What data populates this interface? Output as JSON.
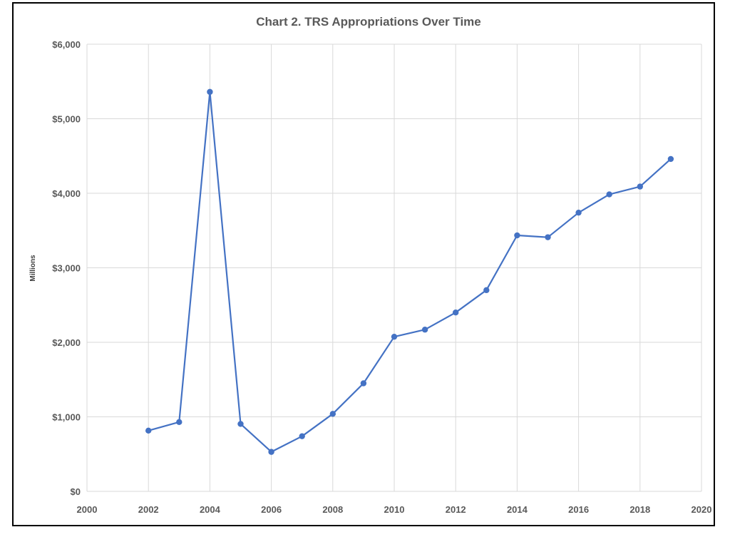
{
  "chart_data": {
    "type": "scatter",
    "mode": "lines+markers",
    "title": "Chart 2. TRS Appropriations Over Time",
    "xlabel": "",
    "ylabel": "Millions",
    "xlim": [
      2000,
      2020
    ],
    "ylim": [
      0,
      6000
    ],
    "x_ticks": [
      2000,
      2002,
      2004,
      2006,
      2008,
      2010,
      2012,
      2014,
      2016,
      2018,
      2020
    ],
    "y_ticks": [
      0,
      1000,
      2000,
      3000,
      4000,
      5000,
      6000
    ],
    "y_tick_labels": [
      "$0",
      "$1,000",
      "$2,000",
      "$3,000",
      "$4,000",
      "$5,000",
      "$6,000"
    ],
    "grid": true,
    "legend": "none",
    "color": "#4472C4",
    "series": [
      {
        "x": [
          2002,
          2003,
          2004,
          2005,
          2006,
          2007,
          2008,
          2009,
          2010,
          2011,
          2012,
          2013,
          2014,
          2015,
          2016,
          2017,
          2018,
          2019
        ],
        "y": [
          815,
          930,
          5360,
          905,
          530,
          740,
          1040,
          1450,
          2075,
          2170,
          2400,
          2700,
          3435,
          3410,
          3740,
          3985,
          4090,
          4460
        ]
      }
    ]
  }
}
